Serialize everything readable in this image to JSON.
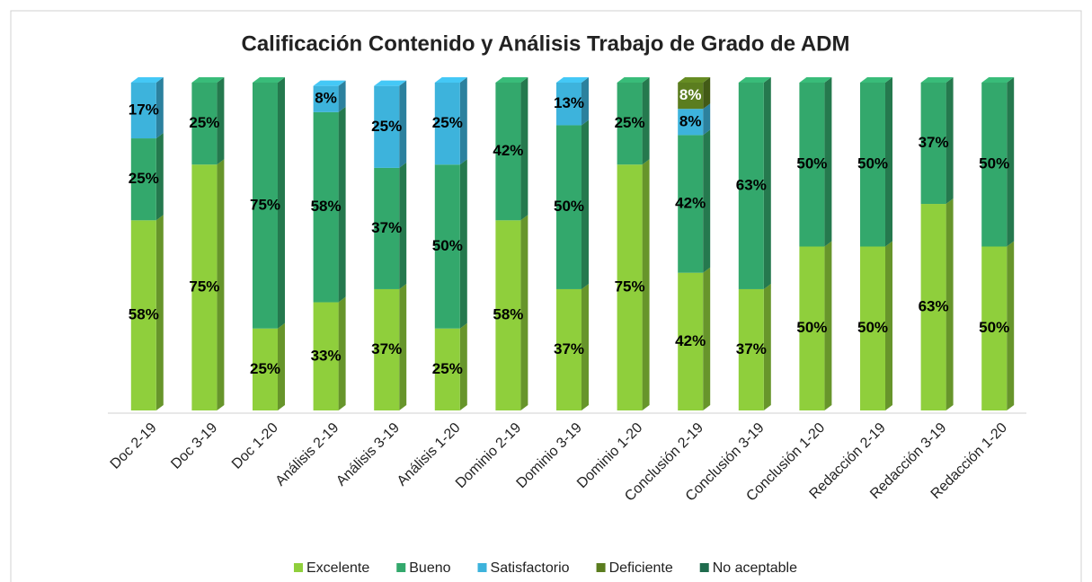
{
  "chart_data": {
    "type": "stacked_bar",
    "title": "Calificación Contenido y Análisis Trabajo de Grado de ADM",
    "categories": [
      "Doc 2-19",
      "Doc 3-19",
      "Doc 1-20",
      "Análisis 2-19",
      "Análisis 3-19",
      "Análisis 1-20",
      "Dominio 2-19",
      "Dominio 3-19",
      "Dominio 1-20",
      "Conclusión 2-19",
      "Conclusión 3-19",
      "Conclusión 1-20",
      "Redacción 2-19",
      "Redacción 3-19",
      "Redacción 1-20"
    ],
    "series": [
      {
        "name": "Excelente",
        "color": "#8fcf3c",
        "label_color": "#000000",
        "values": [
          58,
          75,
          25,
          33,
          37,
          25,
          58,
          37,
          75,
          42,
          37,
          50,
          50,
          63,
          50
        ],
        "value_labels": [
          "58%",
          "75%",
          "25%",
          "33%",
          "37%",
          "25%",
          "58%",
          "37%",
          "75%",
          "42%",
          "37%",
          "50%",
          "50%",
          "63%",
          "50%"
        ]
      },
      {
        "name": "Bueno",
        "color": "#33a86c",
        "label_color": "#000000",
        "values": [
          25,
          25,
          75,
          58,
          37,
          50,
          42,
          50,
          25,
          42,
          63,
          50,
          50,
          37,
          50
        ],
        "value_labels": [
          "25%",
          "25%",
          "75%",
          "58%",
          "37%",
          "50%",
          "42%",
          "50%",
          "25%",
          "42%",
          "63%",
          "50%",
          "50%",
          "37%",
          "50%"
        ]
      },
      {
        "name": "Satisfactorio",
        "color": "#3db3dc",
        "label_color": "#000000",
        "values": [
          17,
          null,
          null,
          8,
          25,
          25,
          null,
          13,
          null,
          8,
          null,
          null,
          null,
          null,
          null
        ],
        "value_labels": [
          "17%",
          null,
          null,
          "8%",
          "25%",
          "25%",
          null,
          "13%",
          null,
          "8%",
          null,
          null,
          null,
          null,
          null
        ]
      },
      {
        "name": "Deficiente",
        "color": "#5b7d1f",
        "label_color": "#ffffff",
        "values": [
          null,
          null,
          null,
          null,
          null,
          null,
          null,
          null,
          null,
          8,
          null,
          null,
          null,
          null,
          null
        ],
        "value_labels": [
          null,
          null,
          null,
          null,
          null,
          null,
          null,
          null,
          null,
          "8%",
          null,
          null,
          null,
          null,
          null
        ]
      },
      {
        "name": "No aceptable",
        "color": "#1f6b4d",
        "label_color": "#ffffff",
        "values": [
          null,
          null,
          null,
          null,
          null,
          null,
          null,
          null,
          null,
          null,
          null,
          null,
          null,
          null,
          null
        ],
        "value_labels": [
          null,
          null,
          null,
          null,
          null,
          null,
          null,
          null,
          null,
          null,
          null,
          null,
          null,
          null,
          null
        ]
      }
    ],
    "ylim": [
      0,
      100
    ],
    "legend": "bottom"
  }
}
